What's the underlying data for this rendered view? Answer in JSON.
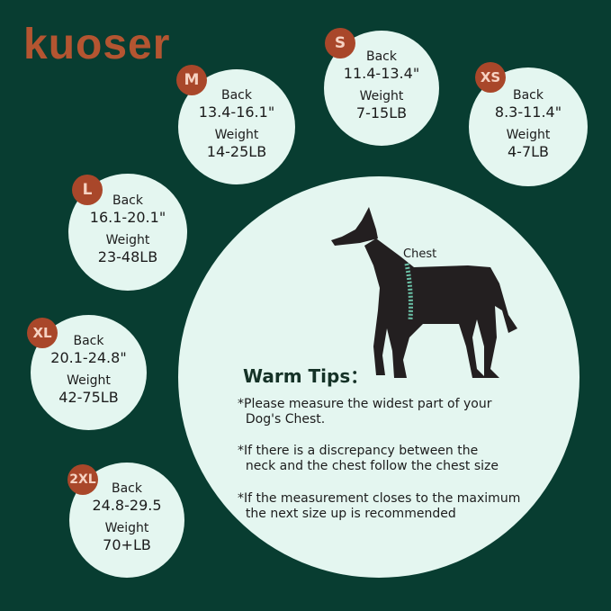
{
  "brand": "kuoser",
  "colors": {
    "background": "#083d31",
    "circle": "#e4f6f0",
    "badge": "#a9472a"
  },
  "sizes": [
    {
      "size": "M",
      "back_label": "Back",
      "back": "13.4-16.1\"",
      "weight_label": "Weight",
      "weight": "14-25LB"
    },
    {
      "size": "S",
      "back_label": "Back",
      "back": "11.4-13.4\"",
      "weight_label": "Weight",
      "weight": "7-15LB"
    },
    {
      "size": "XS",
      "back_label": "Back",
      "back": "8.3-11.4\"",
      "weight_label": "Weight",
      "weight": "4-7LB"
    },
    {
      "size": "L",
      "back_label": "Back",
      "back": "16.1-20.1\"",
      "weight_label": "Weight",
      "weight": "23-48LB"
    },
    {
      "size": "XL",
      "back_label": "Back",
      "back": "20.1-24.8\"",
      "weight_label": "Weight",
      "weight": "42-75LB"
    },
    {
      "size": "2XL",
      "back_label": "Back",
      "back": "24.8-29.5",
      "weight_label": "Weight",
      "weight": "70+LB"
    }
  ],
  "chest_label": "Chest",
  "tips_title": "Warm Tips：",
  "tips": [
    "*Please measure the widest part of your\n  Dog's Chest.",
    "*If there is a discrepancy between the\n  neck and the chest follow the chest size",
    "*If the measurement closes to the maximum\n  the next size up is recommended"
  ]
}
